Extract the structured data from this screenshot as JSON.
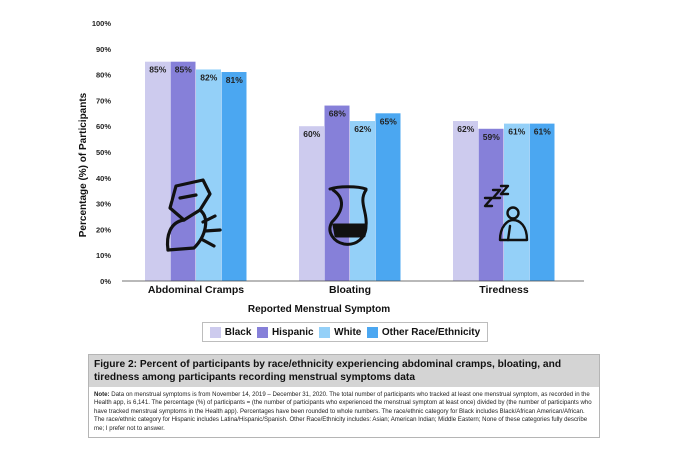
{
  "chart_data": {
    "type": "bar",
    "title": "",
    "xlabel": "Reported Menstrual Symptom",
    "ylabel": "Percentage (%) of Participants",
    "ylim": [
      0,
      100
    ],
    "yticks": [
      "0%",
      "10%",
      "20%",
      "30%",
      "40%",
      "50%",
      "60%",
      "70%",
      "80%",
      "90%",
      "100%"
    ],
    "categories": [
      "Abdominal Cramps",
      "Bloating",
      "Tiredness"
    ],
    "series": [
      {
        "name": "Black",
        "color": "#cdcbee",
        "values": [
          85,
          60,
          62
        ],
        "labels": [
          "85%",
          "60%",
          "62%"
        ]
      },
      {
        "name": "Hispanic",
        "color": "#8680d9",
        "values": [
          85,
          68,
          59
        ],
        "labels": [
          "85%",
          "68%",
          "59%"
        ]
      },
      {
        "name": "White",
        "color": "#94d0f8",
        "values": [
          82,
          62,
          61
        ],
        "labels": [
          "82%",
          "62%",
          "61%"
        ]
      },
      {
        "name": "Other Race/Ethnicity",
        "color": "#4ba7f1",
        "values": [
          81,
          65,
          61
        ],
        "labels": [
          "81%",
          "65%",
          "61%"
        ]
      }
    ],
    "grid": false,
    "legend_position": "bottom",
    "icons": [
      "abdominal-cramps-icon",
      "bloating-icon",
      "tiredness-icon"
    ]
  },
  "caption": {
    "title": "Figure 2: Percent of participants by race/ethnicity experiencing abdominal cramps, bloating, and tiredness among participants recording menstrual symptoms data",
    "note_label": "Note:",
    "note_text": " Data on menstrual symptoms is from November 14, 2019 – December 31, 2020. The total number of participants who tracked at least one menstrual symptom, as recorded in the Health app, is 6,141. The percentage (%) of participants = (the number of participants who experienced the menstrual symptom at least once) divided by (the number of participants who have tracked menstrual symptoms in the Health app). Percentages have been rounded to whole numbers. The race/ethnic category for Black includes Black/African American/African. The race/ethnic category for Hispanic includes Latina/Hispanic/Spanish. Other Race/Ethnicity includes: Asian; American Indian; Middle Eastern; None of these categories fully describe me; I prefer not to answer."
  }
}
